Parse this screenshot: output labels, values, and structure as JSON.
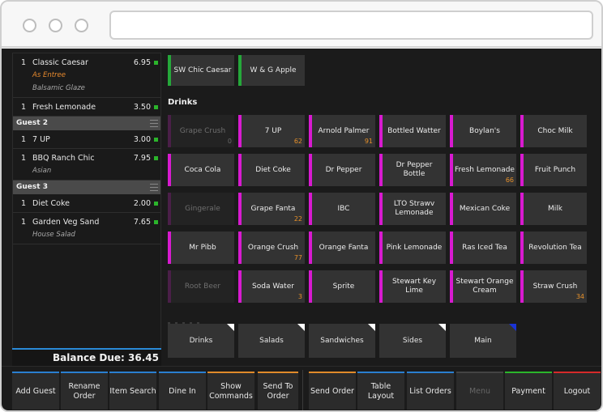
{
  "order": {
    "lines": [
      {
        "qty": "1",
        "name": "Classic Caesar",
        "price": "6.95",
        "mods": [
          {
            "text": "As Entree",
            "style": "orange"
          },
          {
            "text": "Balsamic Glaze",
            "style": "gray"
          }
        ]
      },
      {
        "qty": "1",
        "name": "Fresh Lemonade",
        "price": "3.50",
        "mods": []
      }
    ],
    "guest2": {
      "label": "Guest 2",
      "lines": [
        {
          "qty": "1",
          "name": "7 UP",
          "price": "3.00",
          "mods": []
        },
        {
          "qty": "1",
          "name": "BBQ Ranch Chic",
          "price": "7.95",
          "mods": [
            {
              "text": "Asian",
              "style": "gray"
            }
          ]
        }
      ]
    },
    "guest3": {
      "label": "Guest 3",
      "lines": [
        {
          "qty": "1",
          "name": "Diet Coke",
          "price": "2.00",
          "mods": []
        },
        {
          "qty": "1",
          "name": "Garden Veg Sand",
          "price": "7.65",
          "mods": [
            {
              "text": "House Salad",
              "style": "gray"
            }
          ]
        }
      ]
    },
    "balance_label": "Balance Due: 36.45"
  },
  "recent": [
    "SW Chic Caesar",
    "W & G Apple"
  ],
  "section_title": "Drinks",
  "items": [
    {
      "label": "Grape Crush",
      "count": "0",
      "dim": true
    },
    {
      "label": "7 UP",
      "count": "62",
      "dim": false
    },
    {
      "label": "Arnold Palmer",
      "count": "91",
      "dim": false
    },
    {
      "label": "Bottled Watter",
      "count": "",
      "dim": false
    },
    {
      "label": "Boylan's",
      "count": "",
      "dim": false
    },
    {
      "label": "Choc Milk",
      "count": "",
      "dim": false
    },
    {
      "label": "Coca Cola",
      "count": "",
      "dim": false
    },
    {
      "label": "Diet Coke",
      "count": "",
      "dim": false
    },
    {
      "label": "Dr Pepper",
      "count": "",
      "dim": false
    },
    {
      "label": "Dr Pepper Bottle",
      "count": "",
      "dim": false
    },
    {
      "label": "Fresh Lemonade",
      "count": "66",
      "dim": false
    },
    {
      "label": "Fruit Punch",
      "count": "",
      "dim": false
    },
    {
      "label": "Gingerale",
      "count": "",
      "dim": true
    },
    {
      "label": "Grape Fanta",
      "count": "22",
      "dim": false
    },
    {
      "label": "IBC",
      "count": "",
      "dim": false
    },
    {
      "label": "LTO Strawv Lemonade",
      "count": "",
      "dim": false
    },
    {
      "label": "Mexican Coke",
      "count": "",
      "dim": false
    },
    {
      "label": "Milk",
      "count": "",
      "dim": false
    },
    {
      "label": "Mr Pibb",
      "count": "",
      "dim": false
    },
    {
      "label": "Orange Crush",
      "count": "77",
      "dim": false
    },
    {
      "label": "Orange Fanta",
      "count": "",
      "dim": false
    },
    {
      "label": "Pink Lemonade",
      "count": "",
      "dim": false
    },
    {
      "label": "Ras Iced Tea",
      "count": "",
      "dim": false
    },
    {
      "label": "Revolution Tea",
      "count": "",
      "dim": false
    },
    {
      "label": "Root Beer",
      "count": "",
      "dim": true
    },
    {
      "label": "Soda Water",
      "count": "3",
      "dim": false
    },
    {
      "label": "Sprite",
      "count": "",
      "dim": false
    },
    {
      "label": "Stewart Key Lime",
      "count": "",
      "dim": false
    },
    {
      "label": "Stewart Orange Cream",
      "count": "",
      "dim": false
    },
    {
      "label": "Straw Crush",
      "count": "34",
      "dim": false
    }
  ],
  "categories": [
    {
      "label": "Drinks",
      "corner": "white"
    },
    {
      "label": "Salads",
      "corner": "white"
    },
    {
      "label": "Sandwiches",
      "corner": "white"
    },
    {
      "label": "Sides",
      "corner": "white"
    },
    {
      "label": "Main",
      "corner": "blue"
    }
  ],
  "toolbar": [
    {
      "label": "Add Guest",
      "accent": "blue"
    },
    {
      "label": "Rename Order",
      "accent": "blue"
    },
    {
      "label": "Item Search",
      "accent": "blue"
    },
    {
      "label": "Dine In",
      "accent": "blue"
    },
    {
      "label": "Show Commands",
      "accent": "orange"
    },
    {
      "label": "Send To Order",
      "accent": "orange"
    },
    {
      "label": "Send Order",
      "accent": "orange"
    },
    {
      "label": "Table Layout",
      "accent": "blue"
    },
    {
      "label": "List Orders",
      "accent": "blue"
    },
    {
      "label": "Menu",
      "accent": "gray"
    },
    {
      "label": "Payment",
      "accent": "green"
    },
    {
      "label": "Logout",
      "accent": "red"
    }
  ],
  "colors": {
    "accent_blue": "#2a7fd0",
    "item_accent": "#d81ad0",
    "recent_accent": "#25a83a",
    "count_orange": "#e8912a"
  }
}
